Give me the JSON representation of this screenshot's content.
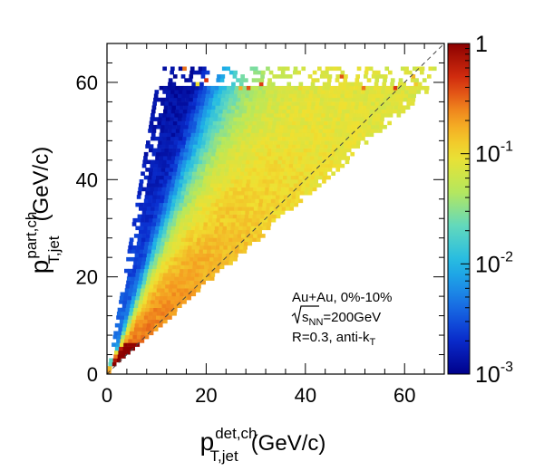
{
  "chart_data": {
    "type": "heatmap",
    "title": "",
    "xlabel": {
      "main": "p",
      "sup": "det,ch",
      "sub": "T,jet",
      "unit": "(GeV/c)"
    },
    "ylabel": {
      "main": "p",
      "sup": "part,ch",
      "sub": "T,jet",
      "unit": "(GeV/c)"
    },
    "xlim": [
      0,
      68
    ],
    "ylim": [
      0,
      68
    ],
    "x_ticks": [
      0,
      20,
      40,
      60
    ],
    "y_ticks": [
      0,
      20,
      40,
      60
    ],
    "x_tick_labels": [
      "0",
      "20",
      "40",
      "60"
    ],
    "y_tick_labels": [
      "0",
      "20",
      "40",
      "60"
    ],
    "colorbar": {
      "scale": "log",
      "range": [
        0.001,
        1
      ],
      "tick_labels": [
        {
          "value": 1,
          "base": "1",
          "exp": ""
        },
        {
          "value": 0.1,
          "base": "10",
          "exp": "-1"
        },
        {
          "value": 0.01,
          "base": "10",
          "exp": "-2"
        },
        {
          "value": 0.001,
          "base": "10",
          "exp": "-3"
        }
      ]
    },
    "diagonal_reference": {
      "from": [
        0,
        0
      ],
      "to": [
        68,
        68
      ],
      "style": "dashed"
    },
    "annotations": {
      "line1": "Au+Au, 0%-10%",
      "line2": {
        "pre": "s",
        "sub": "NN",
        "post": "=200GeV"
      },
      "line3": {
        "pre": "R=0.3, anti-k",
        "sub": "T"
      }
    },
    "distribution": {
      "description_free": true,
      "band_upper_slope": 6.0,
      "band_lower_slope": 0.9,
      "max_part_pt": 63,
      "peak_density": 1.0
    }
  },
  "colors": {
    "palette": [
      "#00008b",
      "#0a2fd0",
      "#1a78e6",
      "#20b8e6",
      "#5fd8c0",
      "#b8e85a",
      "#f0e030",
      "#f59a20",
      "#d83010",
      "#8b0000"
    ]
  }
}
